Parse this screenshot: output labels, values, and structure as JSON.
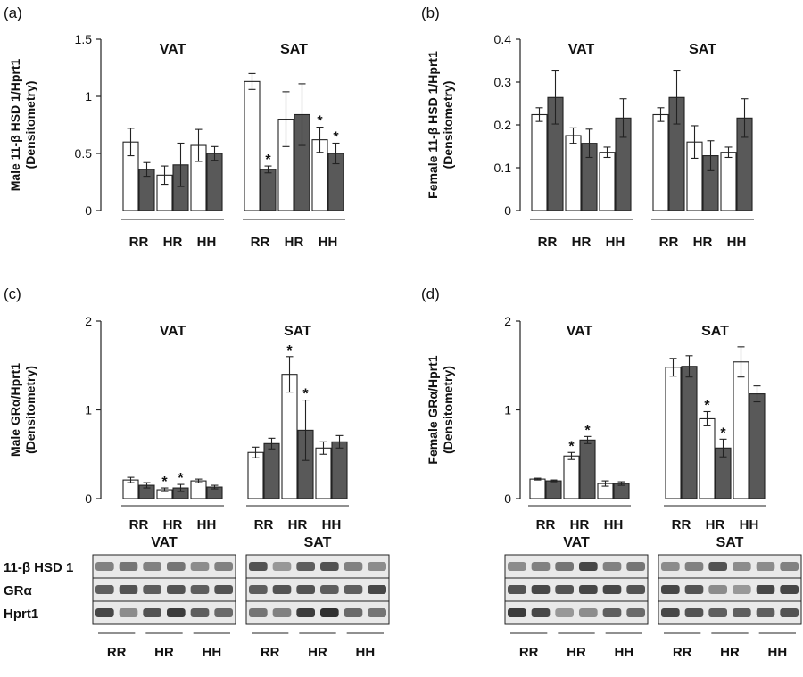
{
  "chart_data": [
    {
      "type": "bar",
      "panel": "(a)",
      "ylabel_line1": "Male 11-β HSD 1/Hprt1",
      "ylabel_line2": "(Densitometry)",
      "ylim": [
        0,
        1.5
      ],
      "yticks": [
        "0",
        "0.5",
        "1",
        "1.5"
      ],
      "ytick_values": [
        0,
        0.5,
        1,
        1.5
      ],
      "groups": [
        {
          "title": "VAT",
          "categories": [
            "RR",
            "HR",
            "HH"
          ],
          "series": [
            {
              "name": "open",
              "values": [
                0.6,
                0.31,
                0.57
              ],
              "errors": [
                0.12,
                0.08,
                0.14
              ],
              "stars": [
                false,
                false,
                false
              ]
            },
            {
              "name": "filled",
              "values": [
                0.36,
                0.4,
                0.5
              ],
              "errors": [
                0.06,
                0.19,
                0.06
              ],
              "stars": [
                false,
                false,
                false
              ]
            }
          ]
        },
        {
          "title": "SAT",
          "categories": [
            "RR",
            "HR",
            "HH"
          ],
          "series": [
            {
              "name": "open",
              "values": [
                1.13,
                0.8,
                0.62
              ],
              "errors": [
                0.07,
                0.24,
                0.11
              ],
              "stars": [
                false,
                false,
                true
              ]
            },
            {
              "name": "filled",
              "values": [
                0.36,
                0.84,
                0.5
              ],
              "errors": [
                0.03,
                0.27,
                0.09
              ],
              "stars": [
                true,
                false,
                true
              ]
            }
          ]
        }
      ]
    },
    {
      "type": "bar",
      "panel": "(b)",
      "ylabel_line1": "Female 11-β HSD 1/Hprt1",
      "ylabel_line2": "(Densitometry)",
      "ylim": [
        0,
        0.4
      ],
      "yticks": [
        "0",
        "0.1",
        "0.2",
        "0.3",
        "0.4"
      ],
      "ytick_values": [
        0,
        0.1,
        0.2,
        0.3,
        0.4
      ],
      "groups": [
        {
          "title": "VAT",
          "categories": [
            "RR",
            "HR",
            "HH"
          ],
          "series": [
            {
              "name": "open",
              "values": [
                0.224,
                0.175,
                0.136
              ],
              "errors": [
                0.016,
                0.018,
                0.012
              ],
              "stars": [
                false,
                false,
                false
              ]
            },
            {
              "name": "filled",
              "values": [
                0.264,
                0.157,
                0.216
              ],
              "errors": [
                0.062,
                0.033,
                0.045
              ],
              "stars": [
                false,
                false,
                false
              ]
            }
          ]
        },
        {
          "title": "SAT",
          "categories": [
            "RR",
            "HR",
            "HH"
          ],
          "series": [
            {
              "name": "open",
              "values": [
                0.224,
                0.16,
                0.136
              ],
              "errors": [
                0.016,
                0.038,
                0.012
              ],
              "stars": [
                false,
                false,
                false
              ]
            },
            {
              "name": "filled",
              "values": [
                0.264,
                0.128,
                0.216
              ],
              "errors": [
                0.062,
                0.035,
                0.045
              ],
              "stars": [
                false,
                false,
                false
              ]
            }
          ]
        }
      ]
    },
    {
      "type": "bar",
      "panel": "(c)",
      "ylabel_line1": "Male GRα/Hprt1",
      "ylabel_line2": "(Densitometry)",
      "ylim": [
        0,
        2
      ],
      "yticks": [
        "0",
        "1",
        "2"
      ],
      "ytick_values": [
        0,
        1,
        2
      ],
      "groups": [
        {
          "title": "VAT",
          "categories": [
            "RR",
            "HR",
            "HH"
          ],
          "series": [
            {
              "name": "open",
              "values": [
                0.21,
                0.1,
                0.2
              ],
              "errors": [
                0.03,
                0.02,
                0.02
              ],
              "stars": [
                false,
                true,
                false
              ]
            },
            {
              "name": "filled",
              "values": [
                0.15,
                0.12,
                0.13
              ],
              "errors": [
                0.03,
                0.04,
                0.02
              ],
              "stars": [
                false,
                true,
                false
              ]
            }
          ]
        },
        {
          "title": "SAT",
          "categories": [
            "RR",
            "HR",
            "HH"
          ],
          "series": [
            {
              "name": "open",
              "values": [
                0.52,
                1.4,
                0.57
              ],
              "errors": [
                0.06,
                0.2,
                0.07
              ],
              "stars": [
                false,
                true,
                false
              ]
            },
            {
              "name": "filled",
              "values": [
                0.62,
                0.77,
                0.64
              ],
              "errors": [
                0.06,
                0.34,
                0.07
              ],
              "stars": [
                false,
                true,
                false
              ]
            }
          ]
        }
      ]
    },
    {
      "type": "bar",
      "panel": "(d)",
      "ylabel_line1": "Female GRα/Hprt1",
      "ylabel_line2": "(Densitometry)",
      "ylim": [
        0,
        2
      ],
      "yticks": [
        "0",
        "1",
        "2"
      ],
      "ytick_values": [
        0,
        1,
        2
      ],
      "groups": [
        {
          "title": "VAT",
          "categories": [
            "RR",
            "HR",
            "HH"
          ],
          "series": [
            {
              "name": "open",
              "values": [
                0.22,
                0.48,
                0.17
              ],
              "errors": [
                0.01,
                0.04,
                0.03
              ],
              "stars": [
                false,
                true,
                false
              ]
            },
            {
              "name": "filled",
              "values": [
                0.2,
                0.66,
                0.17
              ],
              "errors": [
                0.01,
                0.04,
                0.02
              ],
              "stars": [
                false,
                true,
                false
              ]
            }
          ]
        },
        {
          "title": "SAT",
          "categories": [
            "RR",
            "HR",
            "HH"
          ],
          "series": [
            {
              "name": "open",
              "values": [
                1.48,
                0.9,
                1.54
              ],
              "errors": [
                0.1,
                0.08,
                0.17
              ],
              "stars": [
                false,
                true,
                false
              ]
            },
            {
              "name": "filled",
              "values": [
                1.49,
                0.57,
                1.18
              ],
              "errors": [
                0.12,
                0.1,
                0.09
              ],
              "stars": [
                false,
                true,
                false
              ]
            }
          ]
        }
      ]
    }
  ],
  "blots": {
    "left": {
      "group_titles": [
        "VAT",
        "SAT"
      ],
      "row_labels": [
        "11-β HSD 1",
        "GRα",
        "Hprt1"
      ],
      "categories": [
        "RR",
        "HR",
        "HH",
        "RR",
        "HR",
        "HH"
      ]
    },
    "right": {
      "group_titles": [
        "VAT",
        "SAT"
      ],
      "categories": [
        "RR",
        "HR",
        "HH",
        "RR",
        "HR",
        "HH"
      ]
    }
  }
}
